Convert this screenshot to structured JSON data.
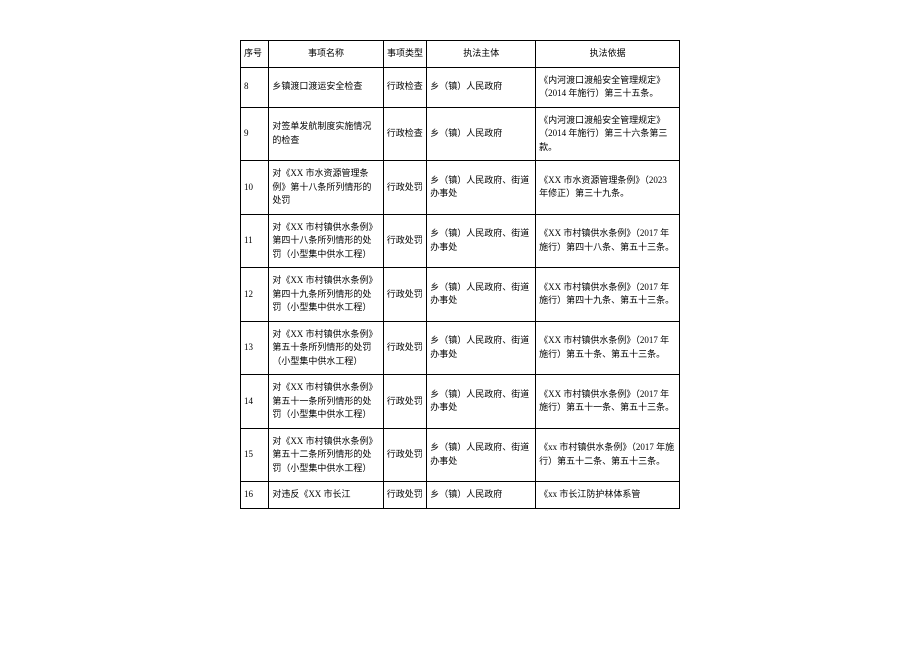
{
  "columns": {
    "idx": "序号",
    "name": "事项名称",
    "type": "事项类型",
    "subject": "执法主体",
    "basis": "执法依据"
  },
  "rows": [
    {
      "idx": "8",
      "name": "乡镇渡口渡运安全检查",
      "type": "行政检查",
      "subject": "乡（镇）人民政府",
      "basis": "《内河渡口渡船安全管理规定》（2014 年施行）第三十五条。"
    },
    {
      "idx": "9",
      "name": "对签单发航制度实施情况的检查",
      "type": "行政检查",
      "subject": "乡（镇）人民政府",
      "basis": "《内河渡口渡船安全管理规定》（2014 年施行）第三十六条第三款。"
    },
    {
      "idx": "10",
      "name": "对《XX 市水资源管理条例》第十八条所列情形的处罚",
      "type": "行政处罚",
      "subject": "乡（镇）人民政府、街道办事处",
      "basis": "《XX 市水资源管理条例》（2023 年修正）第三十九条。"
    },
    {
      "idx": "11",
      "name": "对《XX 市村镇供水条例》第四十八条所列情形的处罚（小型集中供水工程）",
      "type": "行政处罚",
      "subject": "乡（镇）人民政府、街道办事处",
      "basis": "《XX 市村镇供水条例》（2017 年施行）第四十八条、第五十三条。"
    },
    {
      "idx": "12",
      "name": "对《XX 市村镇供水条例》第四十九条所列情形的处罚（小型集中供水工程）",
      "type": "行政处罚",
      "subject": "乡（镇）人民政府、街道办事处",
      "basis": "《XX 市村镇供水条例》（2017 年施行）第四十九条、第五十三条。"
    },
    {
      "idx": "13",
      "name": "对《XX 市村镇供水条例》第五十条所列情形的处罚（小型集中供水工程）",
      "type": "行政处罚",
      "subject": "乡（镇）人民政府、街道办事处",
      "basis": "《XX 市村镇供水条例》（2017 年施行）第五十条、第五十三条。"
    },
    {
      "idx": "14",
      "name": "对《XX 市村镇供水条例》第五十一条所列情形的处罚（小型集中供水工程）",
      "type": "行政处罚",
      "subject": "乡（镇）人民政府、街道办事处",
      "basis": "《XX 市村镇供水条例》（2017 年施行）第五十一条、第五十三条。"
    },
    {
      "idx": "15",
      "name": "对《XX 市村镇供水条例》第五十二条所列情形的处罚（小型集中供水工程）",
      "type": "行政处罚",
      "subject": "乡（镇）人民政府、街道办事处",
      "basis": "《xx 市村镇供水条例》（2017 年施行）第五十二条、第五十三条。"
    },
    {
      "idx": "16",
      "name": "对违反《XX 市长江",
      "type": "行政处罚",
      "subject": "乡（镇）人民政府",
      "basis": "《xx 市长江防护林体系管"
    }
  ]
}
